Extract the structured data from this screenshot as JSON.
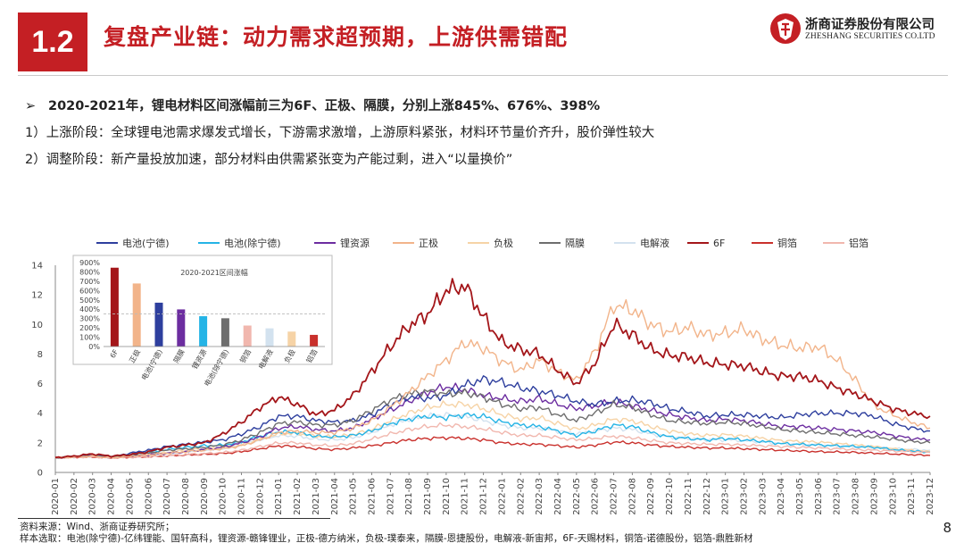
{
  "header": {
    "section_number": "1.2",
    "title": "复盘产业链：动力需求超预期，上游供需错配",
    "logo_cn": "浙商证券股份有限公司",
    "logo_en": "ZHESHANG SECURITIES CO.LTD"
  },
  "bullets": {
    "headline_arrow": "➢",
    "headline": "2020-2021年，锂电材料区间涨幅前三为6F、正极、隔膜，分别上涨845%、676%、398%",
    "point1": "1）上涨阶段：全球锂电池需求爆发式增长，下游需求激增，上游原料紧张，材料环节量价齐升，股价弹性较大",
    "point2": "2）调整阶段：新产量投放加速，部分材料由供需紧张变为产能过剩，进入“以量换价”"
  },
  "chart_data": {
    "type": "line",
    "ylim": [
      0,
      14
    ],
    "yticks": [
      0,
      2,
      4,
      6,
      8,
      10,
      12,
      14
    ],
    "x": [
      "2020-01",
      "2020-02",
      "2020-03",
      "2020-04",
      "2020-05",
      "2020-06",
      "2020-07",
      "2020-08",
      "2020-09",
      "2020-10",
      "2020-11",
      "2020-12",
      "2021-01",
      "2021-02",
      "2021-03",
      "2021-04",
      "2021-05",
      "2021-06",
      "2021-07",
      "2021-08",
      "2021-09",
      "2021-10",
      "2021-11",
      "2021-12",
      "2022-01",
      "2022-02",
      "2022-03",
      "2022-04",
      "2022-05",
      "2022-06",
      "2022-07",
      "2022-08",
      "2022-09",
      "2022-10",
      "2022-11",
      "2022-12",
      "2023-01",
      "2023-02",
      "2023-03",
      "2023-04",
      "2023-05",
      "2023-06",
      "2023-07",
      "2023-08",
      "2023-09",
      "2023-10",
      "2023-11",
      "2023-12"
    ],
    "series": [
      {
        "name": "电池(宁德)",
        "color": "#2e3f9e",
        "values": [
          1.0,
          1.05,
          1.15,
          1.05,
          1.3,
          1.5,
          1.75,
          1.9,
          2.05,
          2.2,
          2.6,
          3.1,
          3.8,
          3.8,
          3.5,
          3.4,
          3.5,
          3.9,
          4.6,
          5.1,
          5.0,
          5.2,
          5.9,
          6.3,
          6.1,
          5.7,
          5.5,
          5.2,
          4.8,
          4.6,
          4.8,
          4.9,
          4.7,
          4.3,
          4.1,
          3.8,
          3.9,
          3.9,
          3.8,
          3.7,
          3.9,
          4.0,
          4.0,
          4.0,
          3.8,
          3.3,
          3.0,
          2.8
        ]
      },
      {
        "name": "电池(除宁德)",
        "color": "#25b4e6",
        "values": [
          1.0,
          1.05,
          1.1,
          1.0,
          1.2,
          1.35,
          1.55,
          1.7,
          1.8,
          1.85,
          2.05,
          2.45,
          2.75,
          2.7,
          2.45,
          2.4,
          2.5,
          2.8,
          3.3,
          3.6,
          3.8,
          3.7,
          3.9,
          3.8,
          3.4,
          3.2,
          3.1,
          2.8,
          2.5,
          2.8,
          3.2,
          3.1,
          2.7,
          2.4,
          2.3,
          2.2,
          2.3,
          2.2,
          2.1,
          1.95,
          1.9,
          1.85,
          1.8,
          1.75,
          1.7,
          1.55,
          1.45,
          1.35
        ]
      },
      {
        "name": "锂资源",
        "color": "#6c2da0",
        "values": [
          1.0,
          1.05,
          1.15,
          1.05,
          1.1,
          1.2,
          1.3,
          1.4,
          1.55,
          1.7,
          2.0,
          2.4,
          3.0,
          3.1,
          2.9,
          2.8,
          3.0,
          3.6,
          4.2,
          4.8,
          5.4,
          5.8,
          5.6,
          5.2,
          5.0,
          4.8,
          5.0,
          4.6,
          4.3,
          4.5,
          4.8,
          4.5,
          4.2,
          3.9,
          3.7,
          3.5,
          3.6,
          3.5,
          3.3,
          3.1,
          3.1,
          3.0,
          2.9,
          2.8,
          2.7,
          2.5,
          2.3,
          2.2
        ]
      },
      {
        "name": "正极",
        "color": "#f2b48a",
        "values": [
          1.0,
          1.05,
          1.1,
          1.0,
          1.1,
          1.2,
          1.3,
          1.4,
          1.5,
          1.6,
          1.8,
          2.2,
          2.7,
          2.8,
          2.7,
          2.7,
          3.0,
          3.5,
          4.4,
          5.4,
          6.5,
          7.6,
          8.8,
          8.4,
          7.5,
          6.9,
          7.6,
          6.8,
          6.2,
          8.2,
          11.3,
          11.0,
          10.0,
          9.5,
          9.8,
          9.3,
          9.4,
          9.7,
          9.0,
          8.6,
          8.4,
          8.5,
          7.6,
          6.2,
          4.5,
          3.9,
          3.4,
          3.0
        ]
      },
      {
        "name": "负极",
        "color": "#f6d3a6",
        "values": [
          1.0,
          1.03,
          1.08,
          1.0,
          1.08,
          1.18,
          1.35,
          1.5,
          1.6,
          1.65,
          1.85,
          2.25,
          2.6,
          2.65,
          2.45,
          2.4,
          2.55,
          2.9,
          3.5,
          4.0,
          4.4,
          4.6,
          4.6,
          4.3,
          3.9,
          3.6,
          3.7,
          3.3,
          2.9,
          3.2,
          3.6,
          3.5,
          3.1,
          2.8,
          2.6,
          2.5,
          2.55,
          2.45,
          2.3,
          2.15,
          2.1,
          2.05,
          1.95,
          1.85,
          1.75,
          1.6,
          1.5,
          1.4
        ]
      },
      {
        "name": "隔膜",
        "color": "#6e6e6e",
        "values": [
          1.0,
          1.05,
          1.12,
          1.05,
          1.15,
          1.3,
          1.5,
          1.6,
          1.7,
          1.85,
          2.2,
          2.7,
          3.3,
          3.4,
          3.2,
          3.2,
          3.5,
          4.2,
          4.9,
          5.3,
          5.5,
          5.3,
          5.4,
          5.1,
          4.6,
          4.3,
          4.4,
          3.9,
          3.5,
          4.0,
          4.6,
          4.4,
          3.9,
          3.5,
          3.4,
          3.3,
          3.4,
          3.3,
          3.1,
          2.9,
          2.8,
          2.7,
          2.6,
          2.5,
          2.4,
          2.25,
          2.1,
          2.0
        ]
      },
      {
        "name": "电解液",
        "color": "#d3e2ef",
        "values": [
          1.0,
          1.03,
          1.08,
          1.0,
          1.05,
          1.12,
          1.25,
          1.4,
          1.5,
          1.6,
          1.85,
          2.2,
          2.5,
          2.45,
          2.25,
          2.2,
          2.35,
          2.7,
          3.2,
          3.6,
          3.8,
          3.9,
          3.8,
          3.5,
          3.2,
          3.0,
          3.0,
          2.8,
          2.6,
          2.8,
          3.0,
          2.9,
          2.6,
          2.4,
          2.3,
          2.2,
          2.2,
          2.15,
          2.05,
          1.95,
          1.9,
          1.85,
          1.8,
          1.75,
          1.7,
          1.6,
          1.55,
          1.5
        ]
      },
      {
        "name": "6F",
        "color": "#a4161a",
        "values": [
          1.0,
          1.1,
          1.25,
          1.1,
          1.2,
          1.4,
          1.7,
          1.85,
          2.0,
          2.6,
          3.4,
          4.4,
          5.1,
          4.6,
          3.9,
          4.2,
          5.2,
          6.8,
          8.5,
          9.9,
          10.7,
          12.3,
          12.6,
          10.5,
          8.8,
          8.3,
          8.0,
          6.9,
          6.0,
          7.4,
          10.0,
          9.3,
          8.3,
          7.9,
          7.8,
          7.4,
          7.3,
          7.2,
          6.8,
          6.5,
          6.5,
          6.2,
          5.7,
          5.3,
          4.8,
          4.3,
          4.0,
          3.8
        ]
      },
      {
        "name": "铜箔",
        "color": "#c9302c",
        "values": [
          1.0,
          1.02,
          1.05,
          0.98,
          1.02,
          1.06,
          1.12,
          1.18,
          1.22,
          1.28,
          1.4,
          1.6,
          1.8,
          1.75,
          1.6,
          1.55,
          1.65,
          1.8,
          2.0,
          2.2,
          2.3,
          2.35,
          2.3,
          2.2,
          2.0,
          1.9,
          1.9,
          1.8,
          1.7,
          1.85,
          2.05,
          2.0,
          1.85,
          1.75,
          1.7,
          1.65,
          1.65,
          1.6,
          1.55,
          1.5,
          1.45,
          1.4,
          1.38,
          1.35,
          1.3,
          1.25,
          1.2,
          1.15
        ]
      },
      {
        "name": "铝箔",
        "color": "#f1b7ae",
        "values": [
          1.0,
          1.02,
          1.06,
          0.98,
          1.02,
          1.07,
          1.15,
          1.22,
          1.28,
          1.35,
          1.5,
          1.75,
          2.0,
          2.0,
          1.85,
          1.8,
          1.95,
          2.25,
          2.6,
          2.9,
          3.1,
          3.2,
          3.1,
          2.95,
          2.7,
          2.5,
          2.5,
          2.35,
          2.2,
          2.3,
          2.45,
          2.35,
          2.15,
          2.0,
          1.95,
          1.9,
          1.9,
          1.85,
          1.8,
          1.75,
          1.7,
          1.65,
          1.6,
          1.55,
          1.5,
          1.45,
          1.4,
          1.35
        ]
      }
    ],
    "inset": {
      "type": "bar",
      "title": "2020-2021区间涨幅",
      "ylim": [
        0,
        900
      ],
      "yticks": [
        "0%",
        "100%",
        "200%",
        "300%",
        "400%",
        "500%",
        "600%",
        "700%",
        "800%",
        "900%"
      ],
      "categories": [
        "6F",
        "正极",
        "电池(宁德)",
        "隔膜",
        "锂资源",
        "电池(除宁德)",
        "铜箔",
        "电解液",
        "负极",
        "铝箔"
      ],
      "values": [
        845,
        676,
        470,
        398,
        325,
        303,
        225,
        195,
        160,
        125
      ],
      "colors": [
        "#a4161a",
        "#f2b48a",
        "#2e3f9e",
        "#6c2da0",
        "#25b4e6",
        "#6e6e6e",
        "#f1b7ae",
        "#d3e2ef",
        "#f6d3a6",
        "#c9302c"
      ],
      "reference_line": 350
    }
  },
  "footnotes": {
    "source": "资料来源：Wind、浙商证券研究所；",
    "sample": "样本选取：电池(除宁德)-亿纬锂能、国轩高科，锂资源-赣锋锂业，正极-德方纳米，负极-璞泰来，隔膜-恩捷股份，电解液-新宙邦，6F-天赐材料，铜箔-诺德股份，铝箔-鼎胜新材"
  },
  "page_number": "8"
}
